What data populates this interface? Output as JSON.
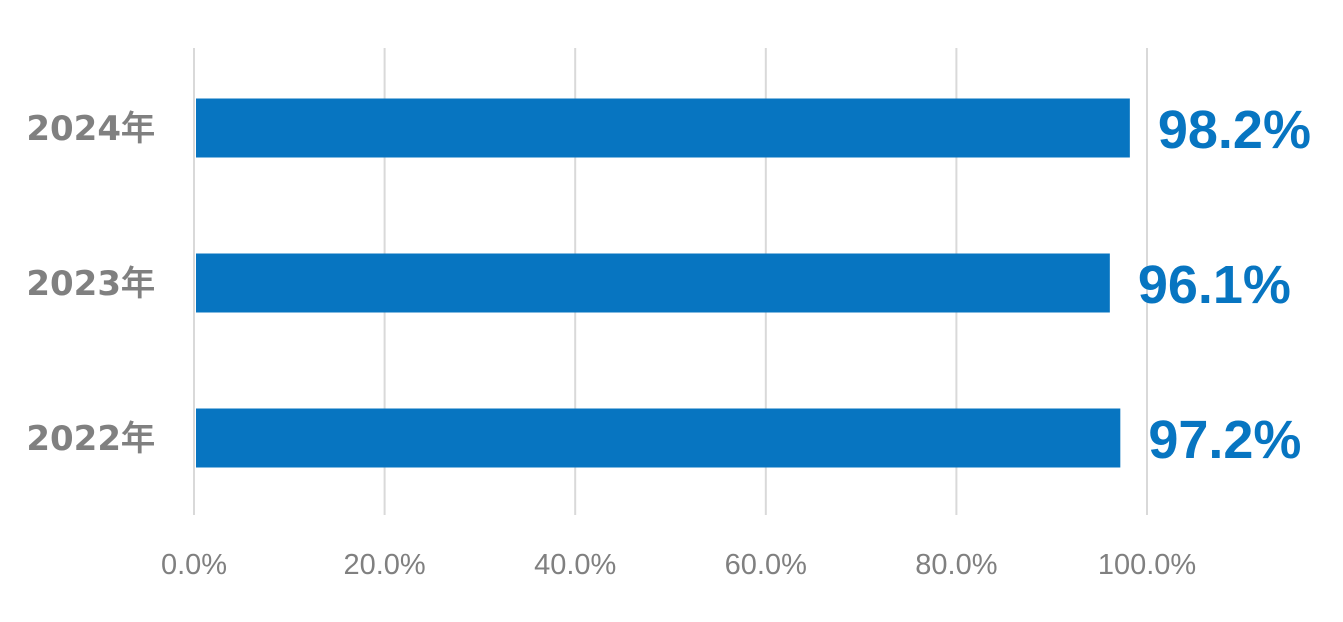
{
  "chart_data": {
    "type": "bar",
    "orientation": "horizontal",
    "categories": [
      "2024年",
      "2023年",
      "2022年"
    ],
    "values": [
      98.2,
      96.1,
      97.2
    ],
    "data_labels": [
      "98.2%",
      "96.1%",
      "97.2%"
    ],
    "xlim": [
      0,
      100
    ],
    "x_ticks": [
      0,
      20,
      40,
      60,
      80,
      100
    ],
    "x_tick_labels": [
      "0.0%",
      "20.0%",
      "40.0%",
      "60.0%",
      "80.0%",
      "100.0%"
    ],
    "grid": true,
    "legend": "none",
    "bar_color": "#0775c1",
    "label_color": "#0775c1",
    "axis_text_color": "#808080",
    "grid_color": "#d9d9d9"
  }
}
